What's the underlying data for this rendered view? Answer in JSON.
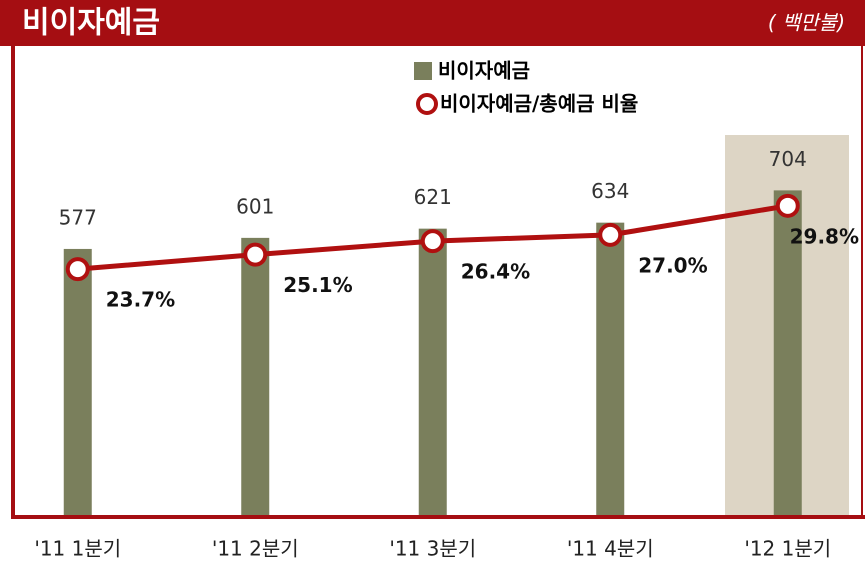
{
  "chart_data": {
    "type": "bar+line",
    "title": "비이자예금",
    "unit": "( 백만불)",
    "categories": [
      "'11 1분기",
      "'11 2분기",
      "'11 3분기",
      "'11 4분기",
      "'12 1분기"
    ],
    "series": [
      {
        "name": "비이자예금",
        "type": "bar",
        "color": "#7a7f5c",
        "axis": "y",
        "values": [
          577,
          601,
          621,
          634,
          704
        ]
      },
      {
        "name": "비이자예금/총예금 비율",
        "type": "line",
        "color": "#b01010",
        "axis": "y2",
        "values": [
          23.7,
          25.1,
          26.4,
          27.0,
          29.8
        ],
        "value_labels": [
          "23.7%",
          "25.1%",
          "26.4%",
          "27.0%",
          "29.8%"
        ]
      }
    ],
    "ylim": [
      0,
      900
    ],
    "y2lim": [
      0,
      40
    ]
  }
}
